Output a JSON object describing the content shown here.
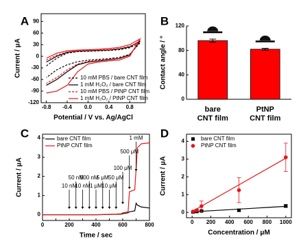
{
  "chart_data": [
    {
      "panel": "A",
      "type": "line",
      "y_label": "Current / μA",
      "x_label": "Potential / V vs. Ag/AgCl",
      "xlim": [
        -0.9,
        1.1
      ],
      "xticks": [
        -0.8,
        -0.4,
        {
          "value": 0,
          "label": "0.0"
        },
        0.4,
        0.8
      ],
      "ylim": [
        -120,
        110
      ],
      "yticks": [
        -120,
        -90,
        -60,
        -30,
        0,
        30,
        60,
        90
      ],
      "legend": "lower right",
      "x": [
        -0.8,
        -0.6,
        -0.4,
        -0.2,
        0,
        0.2,
        0.4,
        0.6,
        0.8,
        1.0,
        0.8,
        0.6,
        0.4,
        0.2,
        0,
        -0.2,
        -0.4,
        -0.6,
        -0.8
      ],
      "series": [
        {
          "name": "10 mM PBS / bare CNT film",
          "color": "#000000",
          "dash": true,
          "values": [
            -25,
            -5,
            8,
            12,
            13,
            14,
            15,
            17,
            22,
            35,
            5,
            -3,
            -6,
            -8,
            -10,
            -14,
            -22,
            -35,
            -55
          ]
        },
        {
          "name": "1 mM H₂O₂ / bare CNT film",
          "color": "#000000",
          "dash": false,
          "values": [
            -15,
            0,
            10,
            13,
            14,
            15,
            16,
            19,
            24,
            40,
            3,
            -6,
            -9,
            -12,
            -15,
            -22,
            -40,
            -60,
            -75
          ]
        },
        {
          "name": "10 mM PBS / PtNP CNT film",
          "color": "#e8141b",
          "dash": true,
          "values": [
            -10,
            3,
            11,
            14,
            15,
            16,
            17,
            20,
            26,
            38,
            4,
            -5,
            -8,
            -10,
            -13,
            -20,
            -35,
            -55,
            -70
          ]
        },
        {
          "name": "1 mM H₂O₂ / PtNP CNT film",
          "color": "#e8141b",
          "dash": false,
          "values": [
            -5,
            8,
            14,
            16,
            17,
            18,
            20,
            23,
            30,
            45,
            0,
            -10,
            -12,
            -15,
            -20,
            -40,
            -75,
            -90,
            -95
          ]
        }
      ]
    },
    {
      "panel": "B",
      "type": "bar",
      "y_label": "Contact angle / °",
      "categories": [
        "bare",
        "PtNP"
      ],
      "category_sublabels": [
        "CNT film",
        "CNT film"
      ],
      "values": [
        96,
        82
      ],
      "errors": [
        2.5,
        1.5
      ],
      "color": "#fe0000",
      "ylim": [
        0,
        120
      ],
      "yticks": [
        0,
        40,
        80,
        120
      ]
    },
    {
      "panel": "C",
      "type": "line",
      "y_label": "Current / μA",
      "x_label": "Time / sec",
      "xlim": [
        0,
        800
      ],
      "xticks": [
        0,
        100,
        200,
        300,
        400,
        500,
        600,
        700,
        800
      ],
      "ylim": [
        -0.3,
        4.2
      ],
      "yticks": [
        0,
        1,
        2,
        3,
        4
      ],
      "legend": "upper left",
      "x": [
        0,
        200,
        400,
        550,
        590,
        600,
        640,
        650,
        690,
        700,
        710,
        740,
        800
      ],
      "series": [
        {
          "name": "bare CNT film",
          "color": "#000000",
          "dash": false,
          "values": [
            0,
            0,
            0,
            0.02,
            0.03,
            0.05,
            0.1,
            0.15,
            0.2,
            0.6,
            0.5,
            0.4,
            0.35
          ]
        },
        {
          "name": "PtNP CNT film",
          "color": "#e8141b",
          "dash": false,
          "values": [
            0,
            0,
            0,
            0.03,
            0.05,
            0.1,
            0.15,
            1.2,
            1.3,
            2.4,
            3.5,
            3.7,
            3.75
          ]
        }
      ],
      "annotations": [
        {
          "text": "10 nM",
          "x": 200
        },
        {
          "text": "50 nM",
          "x": 250
        },
        {
          "text": "10 nM",
          "x": 300
        },
        {
          "text": "500 nM",
          "x": 350
        },
        {
          "text": "1 μM",
          "x": 400
        },
        {
          "text": "5 μM",
          "x": 450
        },
        {
          "text": "10 μM",
          "x": 500
        },
        {
          "text": "50 μM",
          "x": 550
        },
        {
          "text": "100 μM",
          "x": 600
        },
        {
          "text": "500 μM",
          "x": 650
        },
        {
          "text": "1 mM",
          "x": 700
        }
      ]
    },
    {
      "panel": "D",
      "type": "scatter",
      "y_label": "Current / μA",
      "x_label": "Concentration / μM",
      "xlim": [
        -60,
        1060
      ],
      "xticks": [
        0,
        200,
        400,
        600,
        800,
        1000
      ],
      "ylim": [
        -0.3,
        4.4
      ],
      "yticks": [
        0,
        1,
        2,
        3,
        4
      ],
      "legend": "upper left",
      "x": [
        10,
        50,
        100,
        500,
        1000
      ],
      "series": [
        {
          "name": "bare CNT film",
          "color": "#000000",
          "marker": "square",
          "values": [
            0.02,
            0.05,
            0.08,
            0.12,
            0.36
          ],
          "errors": [
            0.02,
            0.03,
            0.03,
            0.05,
            0.08
          ],
          "trend": {
            "x": [
              0,
              1000
            ],
            "values": [
              0.03,
              0.34
            ]
          }
        },
        {
          "name": "PtNP CNT film",
          "color": "#e8141b",
          "marker": "circle",
          "values": [
            0.05,
            0.12,
            0.35,
            1.25,
            3.1
          ],
          "errors": [
            0.03,
            0.06,
            0.3,
            0.7,
            0.8
          ],
          "trend": {
            "x": [
              0,
              1000
            ],
            "values": [
              0.05,
              3.05
            ]
          }
        }
      ]
    }
  ]
}
